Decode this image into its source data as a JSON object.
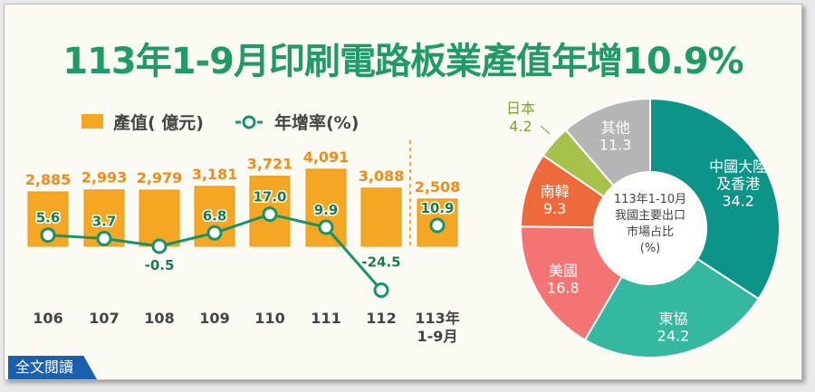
{
  "title": "113年1-9月印刷電路板業產值年增10.9%",
  "read_button": "全文閱讀",
  "chart_data": [
    {
      "type": "bar+line",
      "legend": {
        "bar": "產值( 億元)",
        "line": "年增率(%)",
        "placement": "top-left"
      },
      "categories": [
        "106",
        "107",
        "108",
        "109",
        "110",
        "111",
        "112",
        "113年\n1-9月"
      ],
      "series": [
        {
          "name": "產值( 億元)",
          "type": "bar",
          "values": [
            2885,
            2993,
            2979,
            3181,
            3721,
            4091,
            3088,
            2508
          ],
          "labels": [
            "2,885",
            "2,993",
            "2,979",
            "3,181",
            "3,721",
            "4,091",
            "3,088",
            "2,508"
          ],
          "color": "#f5a623"
        },
        {
          "name": "年增率(%)",
          "type": "line",
          "values": [
            5.6,
            3.7,
            -0.5,
            6.8,
            17.0,
            9.9,
            -24.5,
            10.9
          ],
          "labels": [
            "5.6",
            "3.7",
            "-0.5",
            "6.8",
            "17.0",
            "9.9",
            "-24.5",
            "10.9"
          ],
          "color": "#17936a"
        }
      ]
    },
    {
      "type": "pie",
      "title": "113年1-10月\n我國主要出口\n市場占比\n(%)",
      "slices": [
        {
          "label": "中國大陸\n及香港",
          "value": 34.2,
          "color": "#0d9488"
        },
        {
          "label": "東協",
          "value": 24.2,
          "color": "#34b8a0"
        },
        {
          "label": "美國",
          "value": 16.8,
          "color": "#f47373"
        },
        {
          "label": "南韓",
          "value": 9.3,
          "color": "#ee6a3a"
        },
        {
          "label": "日本",
          "value": 4.2,
          "color": "#a6c24a"
        },
        {
          "label": "其他",
          "value": 11.3,
          "color": "#b5b5b5"
        }
      ]
    }
  ]
}
